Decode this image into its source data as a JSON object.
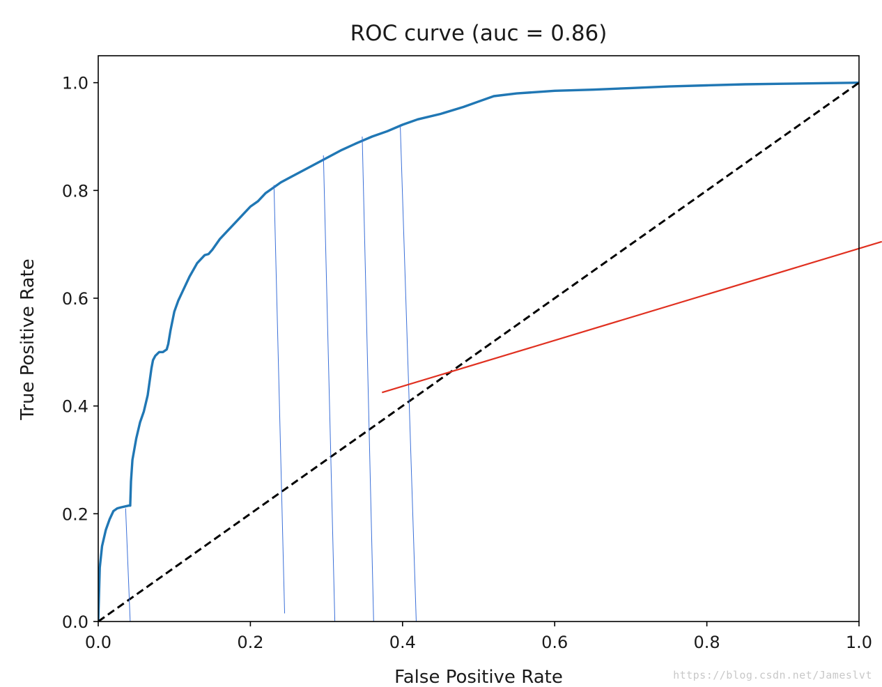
{
  "chart_data": {
    "type": "line",
    "title": "ROC curve (auc = 0.86)",
    "xlabel": "False Positive Rate",
    "ylabel": "True Positive Rate",
    "xlim": [
      0.0,
      1.0
    ],
    "ylim": [
      0.0,
      1.05
    ],
    "xticks": [
      "0.0",
      "0.2",
      "0.4",
      "0.6",
      "0.8",
      "1.0"
    ],
    "yticks": [
      "0.0",
      "0.2",
      "0.4",
      "0.6",
      "0.8",
      "1.0"
    ],
    "grid": false,
    "series": [
      {
        "color": "#2077b4",
        "x": [
          0.0,
          0.002,
          0.005,
          0.01,
          0.015,
          0.02,
          0.025,
          0.03,
          0.04,
          0.042,
          0.043,
          0.045,
          0.05,
          0.055,
          0.06,
          0.065,
          0.07,
          0.072,
          0.075,
          0.08,
          0.085,
          0.09,
          0.092,
          0.095,
          0.1,
          0.105,
          0.11,
          0.12,
          0.13,
          0.14,
          0.145,
          0.15,
          0.16,
          0.17,
          0.18,
          0.19,
          0.2,
          0.21,
          0.22,
          0.23,
          0.24,
          0.26,
          0.28,
          0.3,
          0.32,
          0.34,
          0.36,
          0.38,
          0.4,
          0.42,
          0.45,
          0.48,
          0.5,
          0.52,
          0.55,
          0.6,
          0.65,
          0.7,
          0.75,
          0.8,
          0.85,
          0.9,
          0.95,
          1.0
        ],
        "y": [
          0.0,
          0.1,
          0.14,
          0.17,
          0.19,
          0.205,
          0.21,
          0.212,
          0.215,
          0.215,
          0.26,
          0.3,
          0.34,
          0.37,
          0.39,
          0.42,
          0.47,
          0.485,
          0.493,
          0.5,
          0.5,
          0.505,
          0.515,
          0.54,
          0.575,
          0.595,
          0.61,
          0.64,
          0.665,
          0.68,
          0.682,
          0.69,
          0.71,
          0.725,
          0.74,
          0.755,
          0.77,
          0.78,
          0.795,
          0.805,
          0.815,
          0.83,
          0.845,
          0.86,
          0.875,
          0.888,
          0.9,
          0.91,
          0.922,
          0.932,
          0.942,
          0.955,
          0.965,
          0.975,
          0.98,
          0.985,
          0.987,
          0.99,
          0.993,
          0.995,
          0.997,
          0.998,
          0.999,
          1.0
        ]
      },
      {
        "color": "#000000",
        "style": "dashed",
        "x": [
          0.0,
          1.0
        ],
        "y": [
          0.0,
          1.0
        ]
      }
    ],
    "annotations": [
      {
        "color": "#3a6fd8",
        "x": [
          0.036,
          0.042
        ],
        "y": [
          0.21,
          0.0
        ]
      },
      {
        "color": "#3a6fd8",
        "x": [
          0.231,
          0.245
        ],
        "y": [
          0.81,
          0.015
        ]
      },
      {
        "color": "#3a6fd8",
        "x": [
          0.296,
          0.311
        ],
        "y": [
          0.865,
          0.0
        ]
      },
      {
        "color": "#3a6fd8",
        "x": [
          0.347,
          0.362
        ],
        "y": [
          0.9,
          0.0
        ]
      },
      {
        "color": "#3a6fd8",
        "x": [
          0.397,
          0.418
        ],
        "y": [
          0.92,
          0.0
        ]
      },
      {
        "color": "#e03020",
        "x": [
          0.373,
          1.03
        ],
        "y": [
          0.425,
          0.705
        ]
      }
    ]
  },
  "watermark": "https://blog.csdn.net/Jameslvt"
}
